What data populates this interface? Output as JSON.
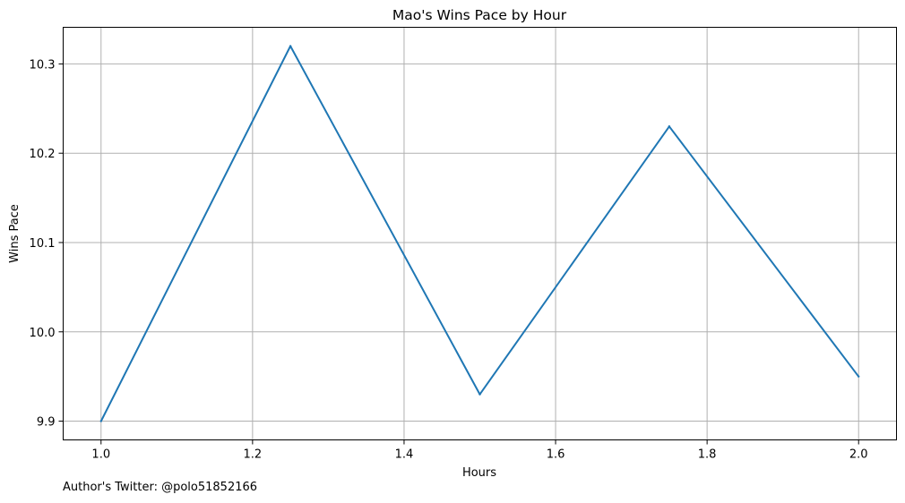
{
  "chart_data": {
    "type": "line",
    "title": "Mao's Wins Pace by Hour",
    "xlabel": "Hours",
    "ylabel": "Wins Pace",
    "x": [
      1.0,
      1.25,
      1.5,
      1.75,
      2.0
    ],
    "series": [
      {
        "values": [
          9.9,
          10.32,
          9.93,
          10.23,
          9.95
        ],
        "color": "#1f77b4"
      }
    ],
    "xlim": [
      0.95,
      2.05
    ],
    "ylim": [
      9.879,
      10.341
    ],
    "xticks": [
      "1.0",
      "1.2",
      "1.4",
      "1.6",
      "1.8",
      "2.0"
    ],
    "yticks": [
      "9.9",
      "10.0",
      "10.1",
      "10.2",
      "10.3"
    ],
    "grid": true
  },
  "footnote": "Author's Twitter: @polo51852166",
  "colors": {
    "line": "#1f77b4",
    "grid": "#b0b0b0"
  }
}
